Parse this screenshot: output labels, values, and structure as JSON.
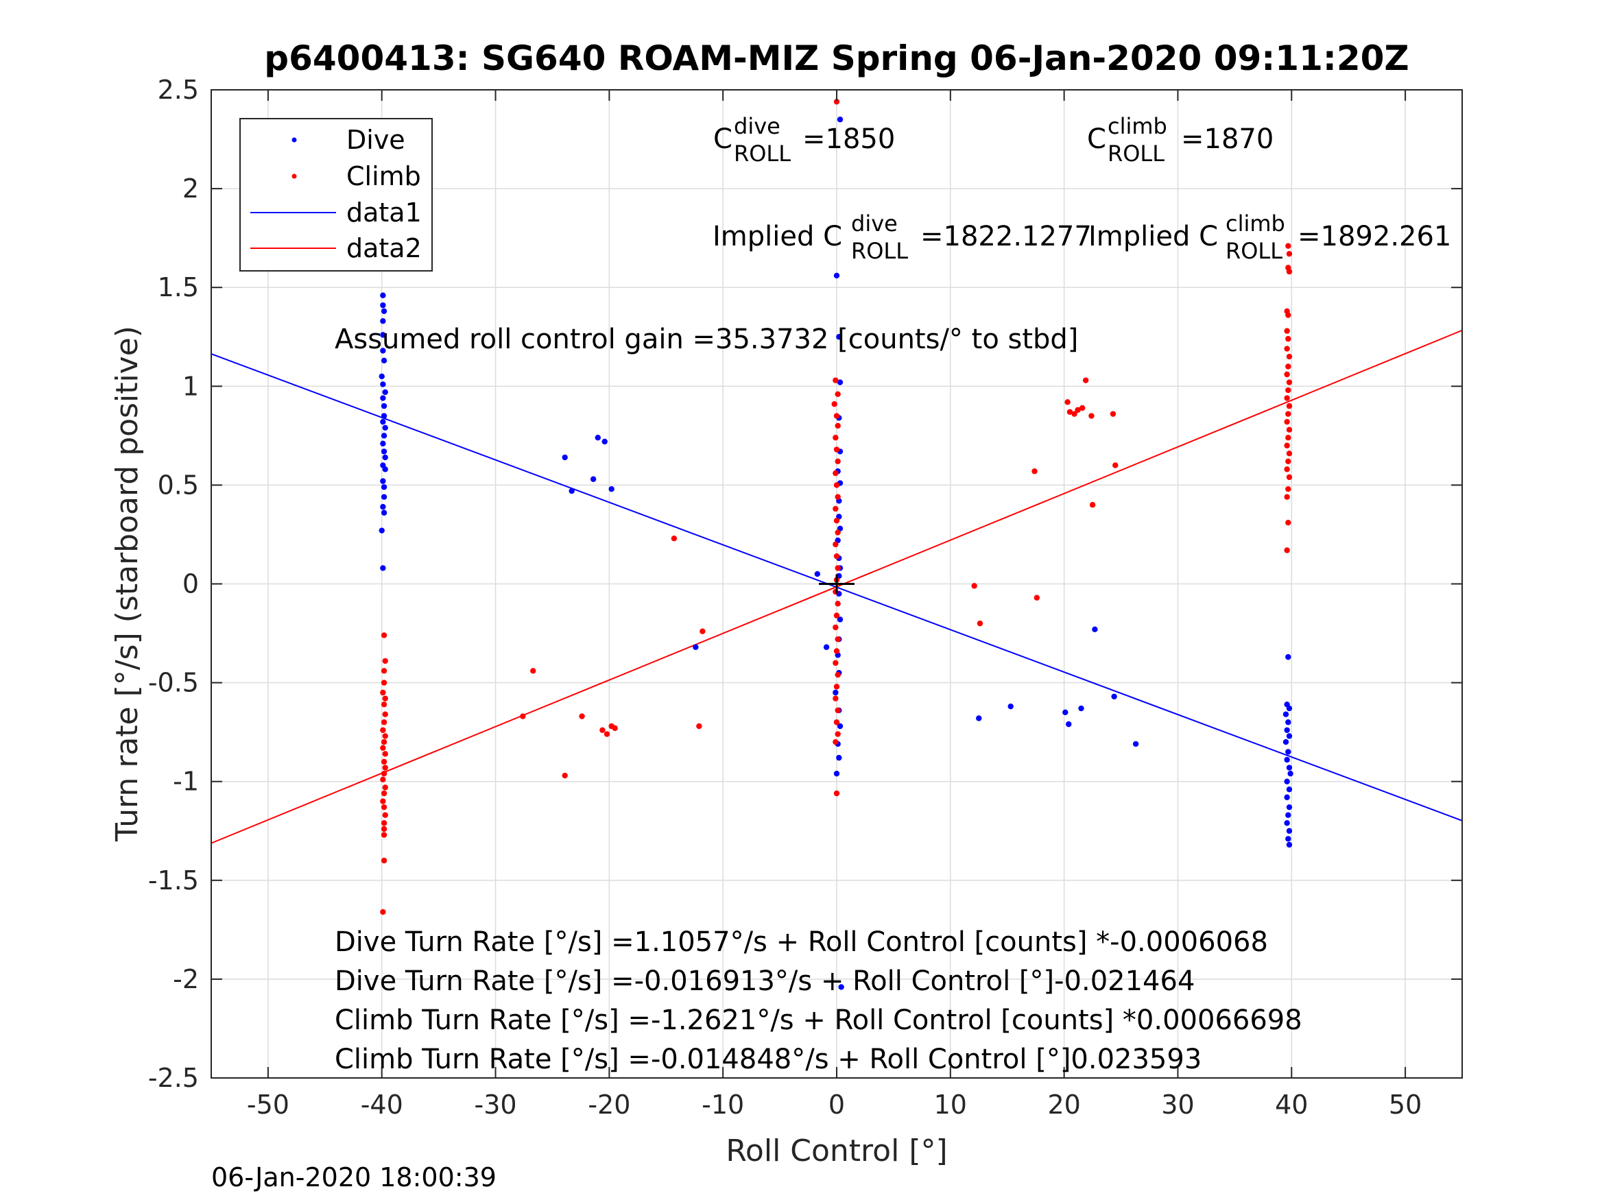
{
  "chart_data": {
    "type": "scatter",
    "title": "p6400413: SG640 ROAM-MIZ Spring 06-Jan-2020 09:11:20Z",
    "xlabel": "Roll Control [°]",
    "ylabel": "Turn rate [°/s] (starboard positive)",
    "xlim": [
      -55,
      55
    ],
    "ylim": [
      -2.5,
      2.5
    ],
    "xticks": [
      -50,
      -40,
      -30,
      -20,
      -10,
      0,
      10,
      20,
      30,
      40,
      50
    ],
    "xtick_labels": [
      "-50",
      "-40",
      "-30",
      "-20",
      "-10",
      "0",
      "10",
      "20",
      "30",
      "40",
      "50"
    ],
    "yticks": [
      -2.5,
      -2,
      -1.5,
      -1,
      -0.5,
      0,
      0.5,
      1,
      1.5,
      2,
      2.5
    ],
    "ytick_labels": [
      "-2.5",
      "-2",
      "-1.5",
      "-1",
      "-0.5",
      "0",
      "0.5",
      "1",
      "1.5",
      "2",
      "2.5"
    ],
    "grid": true,
    "legend_position": "top-left",
    "legend": [
      "Dive",
      "Climb",
      "data1",
      "data2"
    ],
    "series": [
      {
        "name": "Dive",
        "kind": "scatter",
        "color": "#0000ff",
        "points": [
          [
            -39.9,
            1.46
          ],
          [
            -39.9,
            1.41
          ],
          [
            -39.8,
            1.38
          ],
          [
            -39.9,
            1.33
          ],
          [
            -39.9,
            1.26
          ],
          [
            -39.9,
            1.18
          ],
          [
            -39.8,
            1.13
          ],
          [
            -40.0,
            1.05
          ],
          [
            -39.9,
            1.01
          ],
          [
            -39.7,
            0.97
          ],
          [
            -39.9,
            0.94
          ],
          [
            -39.8,
            0.9
          ],
          [
            -39.8,
            0.85
          ],
          [
            -39.9,
            0.82
          ],
          [
            -39.7,
            0.79
          ],
          [
            -39.8,
            0.75
          ],
          [
            -39.9,
            0.71
          ],
          [
            -39.8,
            0.67
          ],
          [
            -39.7,
            0.64
          ],
          [
            -39.9,
            0.6
          ],
          [
            -39.7,
            0.58
          ],
          [
            -39.9,
            0.52
          ],
          [
            -39.8,
            0.49
          ],
          [
            -39.8,
            0.44
          ],
          [
            -39.9,
            0.39
          ],
          [
            -39.8,
            0.36
          ],
          [
            -40.0,
            0.27
          ],
          [
            -39.9,
            0.08
          ],
          [
            -23.9,
            0.64
          ],
          [
            -23.3,
            0.47
          ],
          [
            -21.4,
            0.53
          ],
          [
            -21.0,
            0.74
          ],
          [
            -20.4,
            0.72
          ],
          [
            -19.8,
            0.48
          ],
          [
            -12.4,
            -0.32
          ],
          [
            -1.7,
            0.05
          ],
          [
            -0.9,
            -0.32
          ],
          [
            0.3,
            2.35
          ],
          [
            0.0,
            1.56
          ],
          [
            0.2,
            1.25
          ],
          [
            0.3,
            1.02
          ],
          [
            0.2,
            0.84
          ],
          [
            0.3,
            0.67
          ],
          [
            0.1,
            0.57
          ],
          [
            0.3,
            0.51
          ],
          [
            0.2,
            0.42
          ],
          [
            0.2,
            0.34
          ],
          [
            0.3,
            0.28
          ],
          [
            0.1,
            0.22
          ],
          [
            0.2,
            0.13
          ],
          [
            0.3,
            0.08
          ],
          [
            0.2,
            0.04
          ],
          [
            0.2,
            -0.05
          ],
          [
            0.3,
            -0.18
          ],
          [
            0.2,
            -0.28
          ],
          [
            0.1,
            -0.36
          ],
          [
            0.2,
            -0.45
          ],
          [
            -0.1,
            -0.55
          ],
          [
            0.2,
            -0.64
          ],
          [
            0.3,
            -0.72
          ],
          [
            0.1,
            -0.81
          ],
          [
            0.2,
            -0.88
          ],
          [
            0.0,
            -0.96
          ],
          [
            0.4,
            -2.04
          ],
          [
            12.5,
            -0.68
          ],
          [
            15.3,
            -0.62
          ],
          [
            20.1,
            -0.65
          ],
          [
            20.4,
            -0.71
          ],
          [
            21.5,
            -0.63
          ],
          [
            22.7,
            -0.23
          ],
          [
            24.4,
            -0.57
          ],
          [
            26.3,
            -0.81
          ],
          [
            39.7,
            -0.37
          ],
          [
            39.6,
            -0.61
          ],
          [
            39.8,
            -0.63
          ],
          [
            39.5,
            -0.66
          ],
          [
            39.7,
            -0.7
          ],
          [
            39.6,
            -0.74
          ],
          [
            39.8,
            -0.77
          ],
          [
            39.5,
            -0.8
          ],
          [
            39.7,
            -0.85
          ],
          [
            39.6,
            -0.89
          ],
          [
            39.8,
            -0.93
          ],
          [
            39.9,
            -0.96
          ],
          [
            39.6,
            -1.0
          ],
          [
            39.8,
            -1.04
          ],
          [
            39.6,
            -1.08
          ],
          [
            39.8,
            -1.13
          ],
          [
            39.7,
            -1.17
          ],
          [
            39.6,
            -1.21
          ],
          [
            39.8,
            -1.25
          ],
          [
            39.7,
            -1.29
          ],
          [
            39.8,
            -1.32
          ]
        ]
      },
      {
        "name": "Climb",
        "kind": "scatter",
        "color": "#ff0000",
        "points": [
          [
            -39.8,
            -0.26
          ],
          [
            -39.7,
            -0.39
          ],
          [
            -39.8,
            -0.44
          ],
          [
            -39.8,
            -0.5
          ],
          [
            -39.9,
            -0.55
          ],
          [
            -39.7,
            -0.58
          ],
          [
            -39.8,
            -0.61
          ],
          [
            -39.7,
            -0.66
          ],
          [
            -39.8,
            -0.7
          ],
          [
            -39.9,
            -0.74
          ],
          [
            -39.7,
            -0.77
          ],
          [
            -39.8,
            -0.8
          ],
          [
            -39.9,
            -0.83
          ],
          [
            -39.7,
            -0.86
          ],
          [
            -39.8,
            -0.9
          ],
          [
            -39.7,
            -0.93
          ],
          [
            -39.8,
            -0.96
          ],
          [
            -39.9,
            -0.99
          ],
          [
            -39.7,
            -1.03
          ],
          [
            -39.8,
            -1.06
          ],
          [
            -39.9,
            -1.1
          ],
          [
            -39.8,
            -1.13
          ],
          [
            -39.7,
            -1.17
          ],
          [
            -39.8,
            -1.21
          ],
          [
            -39.8,
            -1.24
          ],
          [
            -39.8,
            -1.27
          ],
          [
            -39.8,
            -1.4
          ],
          [
            -39.9,
            -1.66
          ],
          [
            -27.6,
            -0.67
          ],
          [
            -26.7,
            -0.44
          ],
          [
            -23.9,
            -0.97
          ],
          [
            -22.4,
            -0.67
          ],
          [
            -20.6,
            -0.74
          ],
          [
            -20.2,
            -0.76
          ],
          [
            -19.8,
            -0.72
          ],
          [
            -19.5,
            -0.73
          ],
          [
            -14.3,
            0.23
          ],
          [
            -12.1,
            -0.72
          ],
          [
            -11.8,
            -0.24
          ],
          [
            0.0,
            2.44
          ],
          [
            -0.1,
            1.03
          ],
          [
            0.1,
            0.96
          ],
          [
            -0.2,
            0.91
          ],
          [
            0.0,
            0.85
          ],
          [
            0.1,
            0.8
          ],
          [
            -0.1,
            0.74
          ],
          [
            0.0,
            0.68
          ],
          [
            0.1,
            0.62
          ],
          [
            -0.1,
            0.56
          ],
          [
            0.0,
            0.5
          ],
          [
            0.1,
            0.44
          ],
          [
            -0.1,
            0.38
          ],
          [
            0.0,
            0.32
          ],
          [
            0.1,
            0.26
          ],
          [
            -0.1,
            0.2
          ],
          [
            0.0,
            0.14
          ],
          [
            0.1,
            0.08
          ],
          [
            0.0,
            0.02
          ],
          [
            -0.1,
            -0.04
          ],
          [
            0.1,
            -0.1
          ],
          [
            0.0,
            -0.16
          ],
          [
            -0.1,
            -0.22
          ],
          [
            0.1,
            -0.28
          ],
          [
            0.0,
            -0.34
          ],
          [
            -0.1,
            -0.4
          ],
          [
            0.1,
            -0.46
          ],
          [
            0.0,
            -0.52
          ],
          [
            -0.1,
            -0.58
          ],
          [
            0.1,
            -0.64
          ],
          [
            0.0,
            -0.7
          ],
          [
            0.1,
            -0.76
          ],
          [
            -0.1,
            -0.8
          ],
          [
            0.0,
            -1.06
          ],
          [
            12.1,
            -0.01
          ],
          [
            12.6,
            -0.2
          ],
          [
            17.4,
            0.57
          ],
          [
            17.6,
            -0.07
          ],
          [
            20.3,
            0.92
          ],
          [
            20.5,
            0.87
          ],
          [
            20.9,
            0.86
          ],
          [
            21.2,
            0.88
          ],
          [
            21.6,
            0.89
          ],
          [
            21.9,
            1.03
          ],
          [
            22.4,
            0.85
          ],
          [
            22.5,
            0.4
          ],
          [
            24.3,
            0.86
          ],
          [
            24.5,
            0.6
          ],
          [
            39.7,
            1.71
          ],
          [
            39.8,
            1.67
          ],
          [
            39.7,
            1.6
          ],
          [
            39.8,
            1.58
          ],
          [
            39.6,
            1.38
          ],
          [
            39.7,
            1.36
          ],
          [
            39.6,
            1.28
          ],
          [
            39.7,
            1.24
          ],
          [
            39.6,
            1.19
          ],
          [
            39.8,
            1.15
          ],
          [
            39.7,
            1.1
          ],
          [
            39.6,
            1.06
          ],
          [
            39.8,
            1.02
          ],
          [
            39.7,
            0.98
          ],
          [
            39.6,
            0.94
          ],
          [
            39.8,
            0.9
          ],
          [
            39.7,
            0.86
          ],
          [
            39.6,
            0.82
          ],
          [
            39.8,
            0.78
          ],
          [
            39.7,
            0.74
          ],
          [
            39.6,
            0.7
          ],
          [
            39.8,
            0.66
          ],
          [
            39.7,
            0.62
          ],
          [
            39.6,
            0.58
          ],
          [
            39.8,
            0.54
          ],
          [
            39.7,
            0.48
          ],
          [
            39.6,
            0.44
          ],
          [
            39.7,
            0.31
          ],
          [
            39.6,
            0.17
          ]
        ]
      },
      {
        "name": "data1",
        "kind": "line",
        "color": "#0000ff",
        "x": [
          -55,
          55
        ],
        "y": [
          1.164,
          -1.198
        ]
      },
      {
        "name": "data2",
        "kind": "line",
        "color": "#ff0000",
        "x": [
          -55,
          55
        ],
        "y": [
          -1.312,
          1.283
        ]
      }
    ],
    "center_marker": {
      "x": 0,
      "y": 0,
      "color": "#000000"
    },
    "annotations": {
      "c_dive_base": "C",
      "c_dive_sup": "dive",
      "c_dive_sub": "ROLL",
      "c_dive_value": "=1850",
      "c_climb_base": "C",
      "c_climb_sup": "climb",
      "c_climb_sub": "ROLL",
      "c_climb_value": "=1870",
      "implied_dive_prefix": "Implied C",
      "implied_dive_sup": "dive",
      "implied_dive_sub": "ROLL",
      "implied_dive_value": "=1822.1277",
      "implied_climb_prefix": "Implied C",
      "implied_climb_sup": "climb",
      "implied_climb_sub": "ROLL",
      "implied_climb_value": "=1892.261",
      "gain": "Assumed roll control gain =35.3732 [counts/° to stbd]",
      "eq1": "Dive Turn Rate [°/s] =1.1057°/s + Roll Control [counts] *-0.0006068",
      "eq2": "Dive Turn Rate [°/s] =-0.016913°/s + Roll Control [°]-0.021464",
      "eq3": "Climb Turn Rate [°/s] =-1.2621°/s + Roll Control [counts] *0.00066698",
      "eq4": "Climb Turn Rate [°/s] =-0.014848°/s + Roll Control [°]0.023593"
    }
  },
  "footer": {
    "timestamp": "06-Jan-2020 18:00:39"
  }
}
